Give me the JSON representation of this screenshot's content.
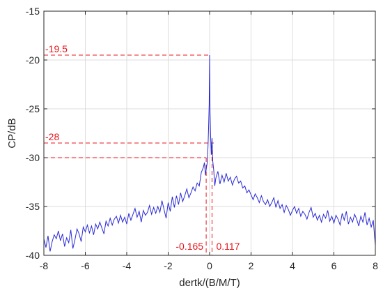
{
  "chart_data": {
    "type": "line",
    "title": "",
    "xlabel": "dertk/(B/M/T)",
    "ylabel": "CP/dB",
    "xlim": [
      -8,
      8
    ],
    "ylim": [
      -40,
      -15
    ],
    "xticks": [
      -8,
      -6,
      -4,
      -2,
      0,
      2,
      4,
      6,
      8
    ],
    "yticks": [
      -40,
      -35,
      -30,
      -25,
      -20,
      -15
    ],
    "grid": true,
    "colors": {
      "series": "#2b2bd6",
      "annotation": "#e8141b",
      "grid": "#dcdcdc",
      "axis": "#262626"
    },
    "series": [
      {
        "color": "#2b2bd6",
        "x": [
          -8.0,
          -7.9,
          -7.8,
          -7.7,
          -7.6,
          -7.5,
          -7.4,
          -7.3,
          -7.2,
          -7.1,
          -7.0,
          -6.9,
          -6.8,
          -6.7,
          -6.6,
          -6.5,
          -6.4,
          -6.3,
          -6.2,
          -6.1,
          -6.0,
          -5.9,
          -5.8,
          -5.7,
          -5.6,
          -5.5,
          -5.4,
          -5.3,
          -5.2,
          -5.1,
          -5.0,
          -4.9,
          -4.8,
          -4.7,
          -4.6,
          -4.5,
          -4.4,
          -4.3,
          -4.2,
          -4.1,
          -4.0,
          -3.9,
          -3.8,
          -3.7,
          -3.6,
          -3.5,
          -3.4,
          -3.3,
          -3.2,
          -3.1,
          -3.0,
          -2.9,
          -2.8,
          -2.7,
          -2.6,
          -2.5,
          -2.4,
          -2.3,
          -2.2,
          -2.1,
          -2.0,
          -1.9,
          -1.8,
          -1.7,
          -1.6,
          -1.5,
          -1.4,
          -1.3,
          -1.2,
          -1.1,
          -1.0,
          -0.9,
          -0.8,
          -0.7,
          -0.6,
          -0.5,
          -0.4,
          -0.3,
          -0.25,
          -0.2,
          -0.165,
          -0.12,
          -0.08,
          -0.05,
          -0.02,
          0.0,
          0.02,
          0.05,
          0.08,
          0.117,
          0.15,
          0.2,
          0.25,
          0.3,
          0.4,
          0.5,
          0.6,
          0.7,
          0.8,
          0.9,
          1.0,
          1.1,
          1.2,
          1.3,
          1.4,
          1.5,
          1.6,
          1.7,
          1.8,
          1.9,
          2.0,
          2.1,
          2.2,
          2.3,
          2.4,
          2.5,
          2.6,
          2.7,
          2.8,
          2.9,
          3.0,
          3.1,
          3.2,
          3.3,
          3.4,
          3.5,
          3.6,
          3.7,
          3.8,
          3.9,
          4.0,
          4.1,
          4.2,
          4.3,
          4.4,
          4.5,
          4.6,
          4.7,
          4.8,
          4.9,
          5.0,
          5.1,
          5.2,
          5.3,
          5.4,
          5.5,
          5.6,
          5.7,
          5.8,
          5.9,
          6.0,
          6.1,
          6.2,
          6.3,
          6.4,
          6.5,
          6.6,
          6.7,
          6.8,
          6.9,
          7.0,
          7.1,
          7.2,
          7.3,
          7.4,
          7.5,
          7.6,
          7.7,
          7.8,
          7.9,
          8.0
        ],
        "y": [
          -38.3,
          -39.2,
          -38.0,
          -39.6,
          -38.6,
          -37.9,
          -38.3,
          -37.5,
          -38.5,
          -37.8,
          -39.1,
          -38.2,
          -38.7,
          -37.4,
          -39.3,
          -38.4,
          -37.3,
          -37.8,
          -38.6,
          -37.1,
          -37.6,
          -36.9,
          -37.7,
          -37.0,
          -37.9,
          -36.8,
          -37.3,
          -36.6,
          -37.2,
          -37.8,
          -36.5,
          -37.0,
          -36.2,
          -36.9,
          -36.3,
          -36.0,
          -36.7,
          -35.9,
          -36.6,
          -36.1,
          -36.8,
          -35.7,
          -36.4,
          -35.8,
          -35.2,
          -36.1,
          -35.5,
          -36.6,
          -35.4,
          -35.9,
          -35.6,
          -34.9,
          -35.8,
          -35.1,
          -35.7,
          -35.0,
          -35.6,
          -34.4,
          -35.3,
          -36.2,
          -34.6,
          -35.5,
          -34.0,
          -35.1,
          -33.9,
          -34.8,
          -33.6,
          -34.5,
          -33.9,
          -33.2,
          -34.1,
          -33.6,
          -33.0,
          -33.4,
          -32.6,
          -32.9,
          -31.5,
          -31.0,
          -30.5,
          -31.8,
          -31.2,
          -30.6,
          -29.0,
          -27.0,
          -24.5,
          -19.5,
          -25.2,
          -27.8,
          -29.7,
          -28.0,
          -30.3,
          -31.3,
          -32.9,
          -32.1,
          -31.4,
          -32.7,
          -31.8,
          -32.5,
          -31.6,
          -32.4,
          -32.0,
          -32.8,
          -32.2,
          -31.9,
          -32.6,
          -32.4,
          -33.1,
          -32.9,
          -33.6,
          -33.3,
          -33.8,
          -34.3,
          -33.7,
          -34.1,
          -34.6,
          -33.9,
          -34.5,
          -34.8,
          -34.3,
          -35.0,
          -34.6,
          -34.1,
          -35.1,
          -34.4,
          -35.2,
          -34.8,
          -35.6,
          -34.9,
          -35.3,
          -35.9,
          -35.4,
          -35.0,
          -35.7,
          -35.2,
          -36.0,
          -35.5,
          -35.8,
          -36.3,
          -35.6,
          -35.1,
          -36.1,
          -35.7,
          -36.4,
          -35.9,
          -36.6,
          -35.8,
          -36.2,
          -35.4,
          -36.5,
          -36.0,
          -36.7,
          -35.9,
          -36.3,
          -36.9,
          -35.7,
          -36.4,
          -35.5,
          -36.8,
          -36.1,
          -36.6,
          -35.8,
          -36.3,
          -37.0,
          -36.0,
          -36.6,
          -35.6,
          -36.9,
          -36.2,
          -37.1,
          -36.4,
          -39.0
        ]
      }
    ],
    "annotations": {
      "peak_label": "-19.5",
      "peak_value": -19.5,
      "level_label": "-28",
      "level_value": -28.5,
      "level2_value": -30,
      "left_label": "-0.165",
      "left_x": -0.165,
      "right_label": "0.117",
      "right_x": 0.117
    }
  }
}
